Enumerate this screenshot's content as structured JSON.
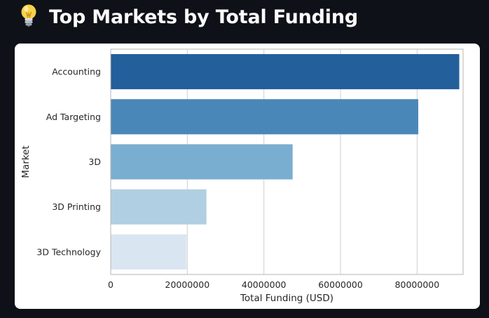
{
  "header": {
    "title": "Top Markets by Total Funding",
    "icon": "light-bulb-icon"
  },
  "theme": {
    "background": "#0e1117",
    "title_color": "#fafafa",
    "card_background": "#ffffff"
  },
  "chart_data": {
    "type": "bar",
    "orientation": "horizontal",
    "title": "",
    "xlabel": "Total Funding (USD)",
    "ylabel": "Market",
    "categories": [
      "Accounting",
      "Ad Targeting",
      "3D",
      "3D Printing",
      "3D Technology"
    ],
    "values": [
      91000000,
      80300000,
      47500000,
      25000000,
      19800000
    ],
    "colors": [
      "#225f9b",
      "#4a87b9",
      "#7aaed0",
      "#b1cfe2",
      "#d9e6f2"
    ],
    "xlim": [
      0,
      92000000
    ],
    "xticks": [
      0,
      20000000,
      40000000,
      60000000,
      80000000
    ],
    "xtick_labels": [
      "0",
      "20000000",
      "40000000",
      "60000000",
      "80000000"
    ],
    "grid": true,
    "grid_axis": "x",
    "legend": "none"
  }
}
